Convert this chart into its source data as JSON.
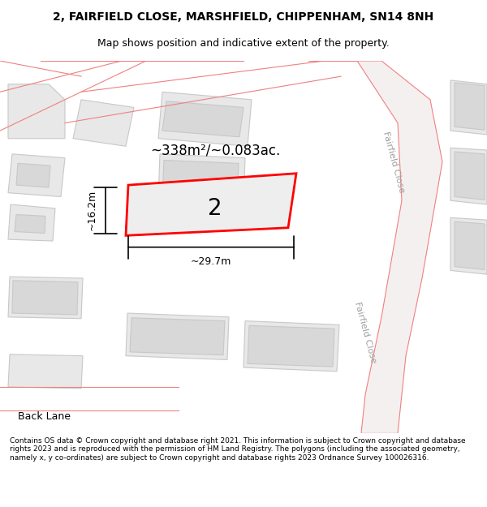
{
  "title_line1": "2, FAIRFIELD CLOSE, MARSHFIELD, CHIPPENHAM, SN14 8NH",
  "title_line2": "Map shows position and indicative extent of the property.",
  "footer_text": "Contains OS data © Crown copyright and database right 2021. This information is subject to Crown copyright and database rights 2023 and is reproduced with the permission of HM Land Registry. The polygons (including the associated geometry, namely x, y co-ordinates) are subject to Crown copyright and database rights 2023 Ordnance Survey 100026316.",
  "map_bg": "#f5f5f5",
  "plot_bg": "#ffffff",
  "building_fill": "#e8e8e8",
  "building_outline": "#cccccc",
  "road_fill": "#f0f0f0",
  "road_color": "#f08080",
  "highlight_color": "#ff0000",
  "highlight_fill": "#f0f0f0",
  "dimension_color": "#1a1a1a",
  "street_label_color": "#a0a0a0",
  "area_label": "~338m²/~0.083ac.",
  "width_label": "~29.7m",
  "height_label": "~16.2m",
  "plot_number": "2",
  "street_name": "Fairfield Close",
  "back_lane": "Back Lane"
}
